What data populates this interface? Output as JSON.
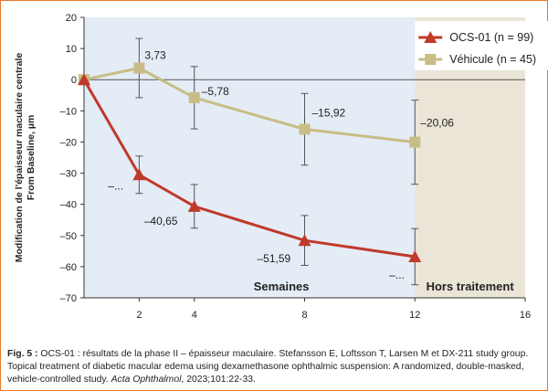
{
  "chart_data": {
    "type": "line",
    "ylabel_line1": "Modification de l'épaisseur maculaire centrale",
    "ylabel_line2": "From Baseline, µm",
    "xlabel": "Semaines",
    "off_treatment_label": "Hors traitement",
    "ylim": [
      -70,
      20
    ],
    "xlim": [
      0,
      16
    ],
    "y_ticks": [
      20,
      10,
      0,
      -10,
      -20,
      -30,
      -40,
      -50,
      -60,
      -70
    ],
    "x_ticks": [
      2,
      4,
      8,
      12,
      16
    ],
    "off_treatment_from": 12,
    "legend_position": "top-right",
    "series": [
      {
        "name": "OCS-01 (n = 99)",
        "color": "#c0392b",
        "marker": "triangle",
        "points": [
          {
            "x": 0,
            "y": 0,
            "err": 0,
            "label": ""
          },
          {
            "x": 2,
            "y": -30.5,
            "err": 6,
            "label": "–..."
          },
          {
            "x": 4,
            "y": -40.65,
            "err": 7,
            "label": "–40,65"
          },
          {
            "x": 8,
            "y": -51.59,
            "err": 8,
            "label": "–51,59"
          },
          {
            "x": 12,
            "y": -56.8,
            "err": 9,
            "label": "–..."
          }
        ]
      },
      {
        "name": "Véhicule (n = 45)",
        "color": "#c8bd85",
        "marker": "square",
        "points": [
          {
            "x": 0,
            "y": 0,
            "err": 0,
            "label": ""
          },
          {
            "x": 2,
            "y": 3.73,
            "err": 9.5,
            "label": "3,73"
          },
          {
            "x": 4,
            "y": -5.78,
            "err": 10,
            "label": "–5,78"
          },
          {
            "x": 8,
            "y": -15.92,
            "err": 11.5,
            "label": "–15,92"
          },
          {
            "x": 12,
            "y": -20.06,
            "err": 13.5,
            "label": "–20,06"
          }
        ]
      }
    ]
  },
  "caption": {
    "fig_label": "Fig. 5 :",
    "text_part1": " OCS-01 : résultats de la phase II – épaisseur maculaire. Stefansson E, Loftsson T, Larsen M et DX-211 study group. Topical treatment of diabetic macular edema using dexamethasone ophthalmic suspension: A randomized, double-masked, vehicle-controlled study. ",
    "journal": "Acta Ophthalmol",
    "text_part2": ", 2023;101:22-33."
  }
}
